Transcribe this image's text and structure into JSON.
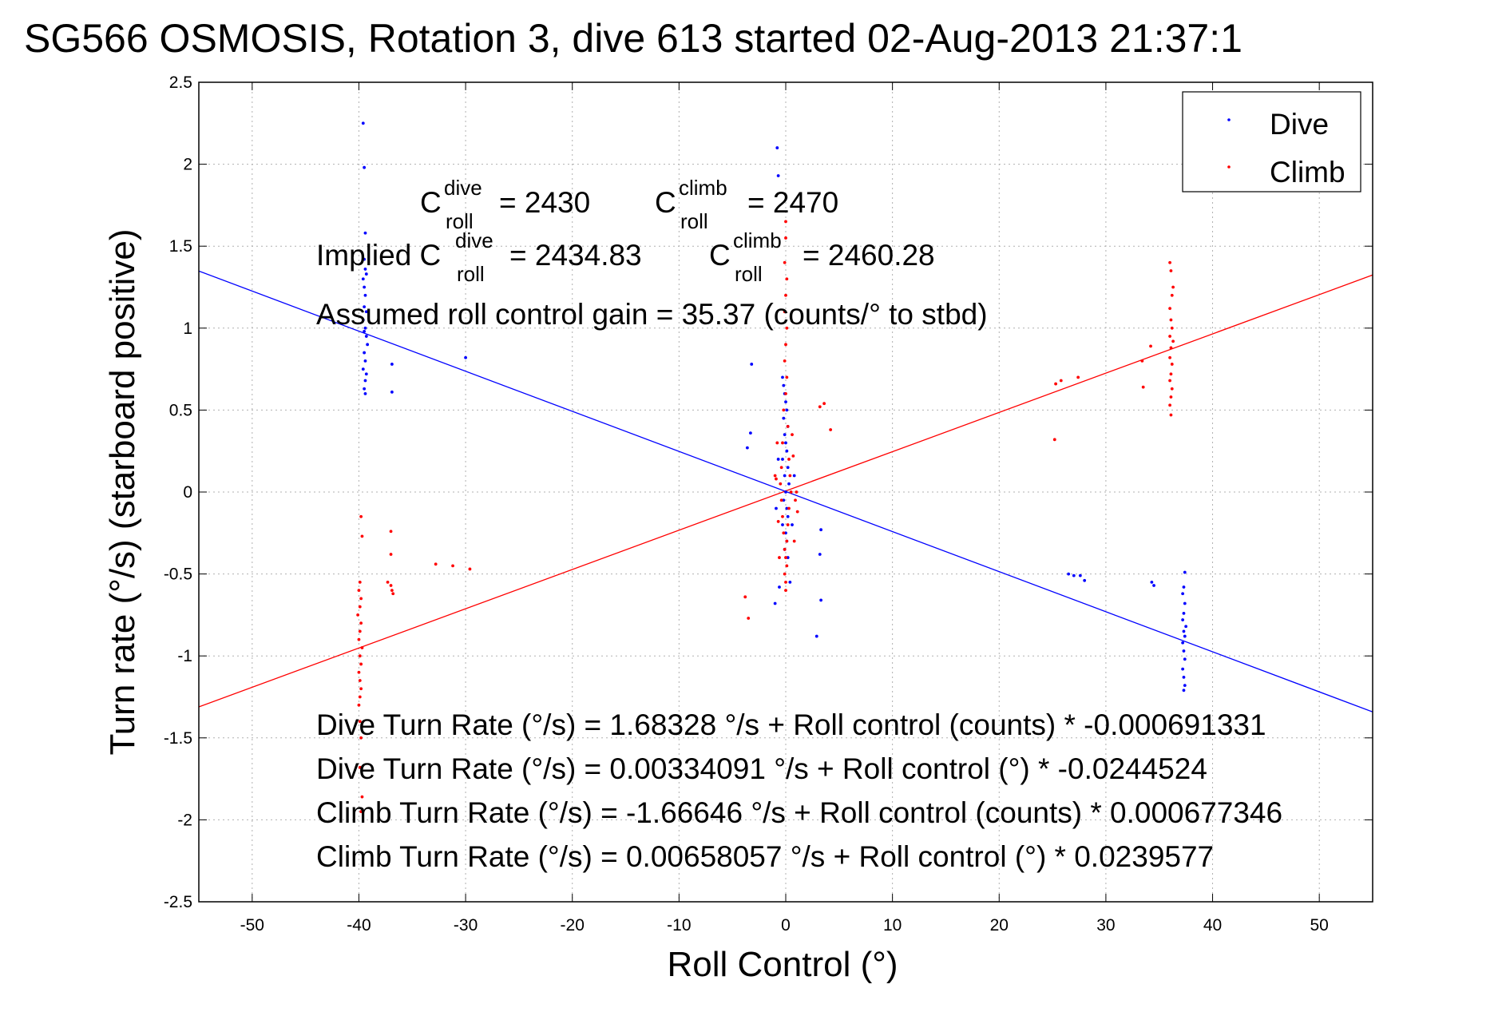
{
  "chart_data": {
    "type": "scatter",
    "title": "SG566 OSMOSIS, Rotation 3, dive 613 started 02-Aug-2013 21:37:1",
    "xlabel": "Roll Control (°)",
    "ylabel": "Turn rate (°/s) (starboard positive)",
    "xlim": [
      -55,
      55
    ],
    "ylim": [
      -2.5,
      2.5
    ],
    "x_ticks": [
      "-50",
      "-40",
      "-30",
      "-20",
      "-10",
      "0",
      "10",
      "20",
      "30",
      "40",
      "50"
    ],
    "y_ticks": [
      "2.5",
      "2",
      "1.5",
      "1",
      "0.5",
      "0",
      "-0.5",
      "-1",
      "-1.5",
      "-2",
      "-2.5"
    ],
    "grid": true,
    "legend_position": "top-right",
    "series": [
      {
        "name": "Dive",
        "color": "#0000ff",
        "points": [
          [
            -39.6,
            2.25
          ],
          [
            -39.5,
            1.98
          ],
          [
            -39.4,
            1.58
          ],
          [
            -39.5,
            1.42
          ],
          [
            -39.4,
            1.36
          ],
          [
            -39.3,
            1.33
          ],
          [
            -39.6,
            1.3
          ],
          [
            -39.5,
            1.25
          ],
          [
            -39.4,
            1.2
          ],
          [
            -39.5,
            1.13
          ],
          [
            -39.3,
            1.1
          ],
          [
            -39.6,
            1.05
          ],
          [
            -39.4,
            1.0
          ],
          [
            -39.5,
            0.98
          ],
          [
            -39.3,
            0.95
          ],
          [
            -39.2,
            0.9
          ],
          [
            -39.5,
            0.85
          ],
          [
            -39.4,
            0.8
          ],
          [
            -39.6,
            0.75
          ],
          [
            -39.3,
            0.72
          ],
          [
            -39.4,
            0.68
          ],
          [
            -39.5,
            0.63
          ],
          [
            -39.4,
            0.6
          ],
          [
            -36.9,
            0.78
          ],
          [
            -36.9,
            0.61
          ],
          [
            -30.0,
            0.82
          ],
          [
            -0.8,
            2.1
          ],
          [
            -0.7,
            1.93
          ],
          [
            -3.2,
            0.78
          ],
          [
            -0.3,
            0.7
          ],
          [
            -0.2,
            0.65
          ],
          [
            -0.1,
            0.6
          ],
          [
            0.0,
            0.55
          ],
          [
            0.1,
            0.5
          ],
          [
            -0.2,
            0.45
          ],
          [
            0.2,
            0.4
          ],
          [
            -0.1,
            0.35
          ],
          [
            0.0,
            0.3
          ],
          [
            0.1,
            0.25
          ],
          [
            -0.3,
            0.2
          ],
          [
            0.2,
            0.15
          ],
          [
            -0.1,
            0.1
          ],
          [
            0.3,
            0.05
          ],
          [
            0.0,
            0.0
          ],
          [
            -0.2,
            -0.05
          ],
          [
            0.1,
            -0.1
          ],
          [
            0.2,
            -0.15
          ],
          [
            -0.3,
            -0.2
          ],
          [
            0.0,
            -0.25
          ],
          [
            0.1,
            -0.3
          ],
          [
            -0.1,
            -0.35
          ],
          [
            0.2,
            -0.4
          ],
          [
            -3.3,
            0.36
          ],
          [
            -3.6,
            0.27
          ],
          [
            3.3,
            -0.23
          ],
          [
            3.2,
            -0.38
          ],
          [
            -1.0,
            -0.68
          ],
          [
            -0.6,
            -0.58
          ],
          [
            0.4,
            -0.55
          ],
          [
            3.3,
            -0.66
          ],
          [
            2.9,
            -0.88
          ],
          [
            0.8,
            0.1
          ],
          [
            -0.9,
            -0.1
          ],
          [
            0.6,
            -0.2
          ],
          [
            -0.7,
            0.2
          ],
          [
            26.5,
            -0.5
          ],
          [
            27.0,
            -0.51
          ],
          [
            27.6,
            -0.51
          ],
          [
            28.0,
            -0.54
          ],
          [
            34.3,
            -0.55
          ],
          [
            34.5,
            -0.57
          ],
          [
            37.4,
            -0.49
          ],
          [
            37.3,
            -0.58
          ],
          [
            37.2,
            -0.62
          ],
          [
            37.4,
            -0.68
          ],
          [
            37.3,
            -0.74
          ],
          [
            37.2,
            -0.78
          ],
          [
            37.5,
            -0.82
          ],
          [
            37.3,
            -0.85
          ],
          [
            37.4,
            -0.88
          ],
          [
            37.2,
            -0.92
          ],
          [
            37.3,
            -0.97
          ],
          [
            37.4,
            -1.02
          ],
          [
            37.2,
            -1.08
          ],
          [
            37.3,
            -1.13
          ],
          [
            37.4,
            -1.18
          ],
          [
            37.3,
            -1.21
          ]
        ]
      },
      {
        "name": "Climb",
        "color": "#ff0000",
        "points": [
          [
            -39.8,
            -0.15
          ],
          [
            -39.7,
            -0.27
          ],
          [
            -39.9,
            -0.55
          ],
          [
            -40.0,
            -0.6
          ],
          [
            -39.8,
            -0.65
          ],
          [
            -39.9,
            -0.7
          ],
          [
            -40.1,
            -0.75
          ],
          [
            -39.8,
            -0.8
          ],
          [
            -39.9,
            -0.85
          ],
          [
            -40.0,
            -0.9
          ],
          [
            -39.7,
            -0.95
          ],
          [
            -39.9,
            -1.0
          ],
          [
            -39.8,
            -1.05
          ],
          [
            -40.0,
            -1.1
          ],
          [
            -39.9,
            -1.15
          ],
          [
            -39.8,
            -1.2
          ],
          [
            -39.9,
            -1.25
          ],
          [
            -40.0,
            -1.3
          ],
          [
            -39.9,
            -1.4
          ],
          [
            -39.8,
            -1.5
          ],
          [
            -39.9,
            -1.68
          ],
          [
            -39.7,
            -1.86
          ],
          [
            -39.8,
            -1.95
          ],
          [
            -37.0,
            -0.24
          ],
          [
            -37.0,
            -0.38
          ],
          [
            -37.3,
            -0.55
          ],
          [
            -37.0,
            -0.57
          ],
          [
            -36.9,
            -0.6
          ],
          [
            -36.8,
            -0.62
          ],
          [
            -32.8,
            -0.44
          ],
          [
            -31.2,
            -0.45
          ],
          [
            -29.6,
            -0.47
          ],
          [
            0.0,
            1.65
          ],
          [
            0.0,
            1.55
          ],
          [
            -0.1,
            1.4
          ],
          [
            0.1,
            1.3
          ],
          [
            0.0,
            1.2
          ],
          [
            -0.1,
            1.1
          ],
          [
            0.1,
            1.0
          ],
          [
            0.0,
            0.9
          ],
          [
            -0.1,
            0.8
          ],
          [
            0.1,
            0.7
          ],
          [
            0.0,
            0.6
          ],
          [
            -0.2,
            0.5
          ],
          [
            0.2,
            0.4
          ],
          [
            -0.3,
            0.3
          ],
          [
            0.3,
            0.2
          ],
          [
            -0.4,
            0.15
          ],
          [
            0.4,
            0.1
          ],
          [
            -0.5,
            0.05
          ],
          [
            0.5,
            0.0
          ],
          [
            -0.4,
            -0.05
          ],
          [
            0.3,
            -0.1
          ],
          [
            -0.3,
            -0.15
          ],
          [
            0.2,
            -0.2
          ],
          [
            -0.2,
            -0.25
          ],
          [
            0.1,
            -0.3
          ],
          [
            -0.1,
            -0.35
          ],
          [
            0.0,
            -0.4
          ],
          [
            0.1,
            -0.45
          ],
          [
            -0.1,
            -0.5
          ],
          [
            0.0,
            -0.55
          ],
          [
            0.0,
            -0.6
          ],
          [
            -0.9,
            0.08
          ],
          [
            0.9,
            -0.05
          ],
          [
            -0.7,
            -0.18
          ],
          [
            0.7,
            0.22
          ],
          [
            -0.8,
            0.3
          ],
          [
            0.8,
            -0.3
          ],
          [
            1.0,
            0.0
          ],
          [
            -1.0,
            0.1
          ],
          [
            1.1,
            -0.12
          ],
          [
            0.6,
            0.35
          ],
          [
            -0.6,
            -0.4
          ],
          [
            3.2,
            0.52
          ],
          [
            3.6,
            0.54
          ],
          [
            4.2,
            0.38
          ],
          [
            -3.8,
            -0.64
          ],
          [
            -3.5,
            -0.77
          ],
          [
            25.3,
            0.66
          ],
          [
            25.8,
            0.68
          ],
          [
            27.4,
            0.7
          ],
          [
            25.2,
            0.32
          ],
          [
            33.4,
            0.8
          ],
          [
            33.5,
            0.64
          ],
          [
            34.2,
            0.89
          ],
          [
            36.0,
            1.4
          ],
          [
            36.1,
            1.35
          ],
          [
            36.3,
            1.25
          ],
          [
            36.2,
            1.2
          ],
          [
            36.0,
            1.12
          ],
          [
            36.1,
            1.05
          ],
          [
            36.2,
            1.0
          ],
          [
            36.0,
            0.95
          ],
          [
            36.3,
            0.92
          ],
          [
            36.1,
            0.88
          ],
          [
            36.0,
            0.82
          ],
          [
            36.2,
            0.78
          ],
          [
            36.1,
            0.72
          ],
          [
            36.0,
            0.68
          ],
          [
            36.2,
            0.63
          ],
          [
            36.1,
            0.58
          ],
          [
            36.0,
            0.53
          ],
          [
            36.1,
            0.47
          ]
        ]
      }
    ],
    "fit_lines": [
      {
        "color": "#0000ff",
        "slope": -0.0244524,
        "intercept": 0.00334091
      },
      {
        "color": "#ff0000",
        "slope": 0.0239577,
        "intercept": 0.00658057
      }
    ],
    "annotations": {
      "c_dive": {
        "base": "C",
        "sup": "dive",
        "sub": "roll",
        "value": "= 2430"
      },
      "c_climb": {
        "base": "C",
        "sup": "climb",
        "sub": "roll",
        "value": "= 2470"
      },
      "implied_dive": {
        "prefix": "Implied C",
        "sup": "dive",
        "sub": "roll",
        "value": "= 2434.83"
      },
      "implied_climb": {
        "base": "C",
        "sup": "climb",
        "sub": "roll",
        "value": "= 2460.28"
      },
      "gain": "Assumed roll control gain = 35.37 (counts/° to stbd)",
      "eq1": "Dive Turn Rate (°/s) = 1.68328 °/s + Roll control (counts) * -0.000691331",
      "eq2": "Dive Turn Rate (°/s) = 0.00334091 °/s + Roll control (°) * -0.0244524",
      "eq3": "Climb Turn Rate (°/s) = -1.66646 °/s + Roll control (counts) * 0.000677346",
      "eq4": "Climb Turn Rate (°/s) = 0.00658057 °/s + Roll control (°) * 0.0239577"
    }
  }
}
